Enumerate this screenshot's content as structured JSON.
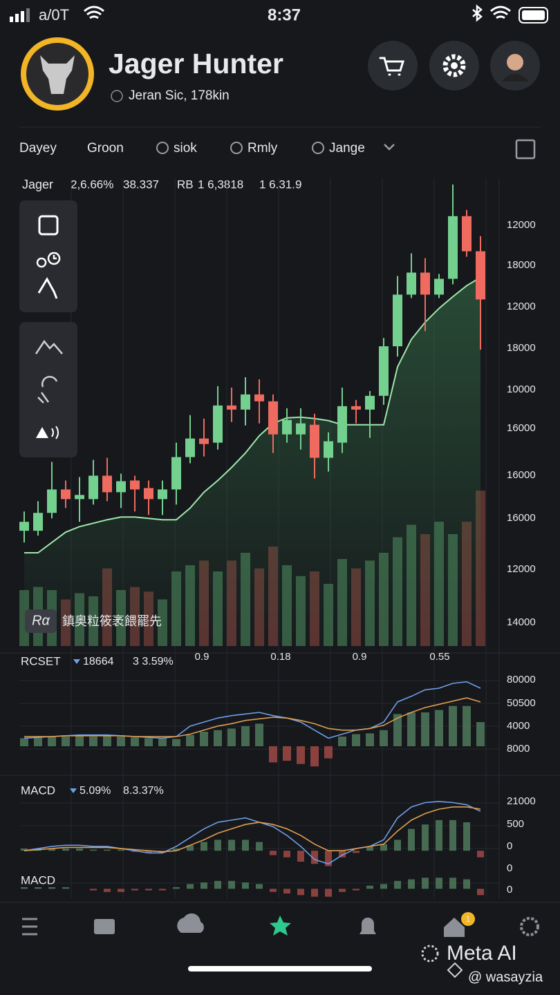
{
  "status_bar": {
    "carrier": "a/0T",
    "time": "8:37"
  },
  "header": {
    "title": "Jager Hunter",
    "subtitle": "Jeran Sic,  178kin"
  },
  "tabs": [
    "Dayey",
    "Groon",
    "siok",
    "Rmly",
    "Jange"
  ],
  "active_tab": 1,
  "legend": {
    "symbol": "Jager",
    "change": "2,6.66%",
    "price": "38.337",
    "ref_label": "RB",
    "ref_value": "1 6,3818",
    "ref_change": "1 6.31.9"
  },
  "price_axis_labels": [
    12000,
    18000,
    12000,
    18000,
    10000,
    16000,
    16000,
    16000,
    12000,
    14000
  ],
  "watermark": {
    "badge": "Rα",
    "text": "鎮奥粒筱袤餵罷先"
  },
  "time_axis_labels": [
    "0.9",
    "0.18",
    "0.9",
    "0.55"
  ],
  "chart_data": [
    {
      "type": "candlestick",
      "open": [
        8.4,
        8.4,
        13.6,
        20.4,
        17.6,
        17.6,
        24.4,
        19.6,
        23,
        20.8,
        17.6,
        20.4,
        29.8,
        35.2,
        34,
        44.8,
        43.6,
        48,
        46,
        36.4,
        36.4,
        39.2,
        29.6,
        34,
        44.6,
        43.6,
        47.6,
        62,
        77,
        83.4,
        77,
        81.6,
        99.8,
        89.6
      ],
      "high": [
        14,
        17,
        28.4,
        23,
        24,
        29,
        29.6,
        25,
        24.4,
        23,
        23,
        34,
        42,
        41,
        50.4,
        50,
        53,
        52.4,
        48,
        44,
        44,
        42.4,
        37,
        50,
        46.4,
        49,
        64.4,
        82.4,
        89,
        87.6,
        83,
        109,
        101.6,
        94
      ],
      "low": [
        5,
        7,
        12,
        15,
        11,
        16,
        17,
        15,
        14,
        13,
        13,
        16,
        28,
        30,
        32,
        40,
        39,
        39.6,
        31,
        34,
        32,
        23.6,
        25.6,
        31,
        39.6,
        35.4,
        45,
        59,
        76,
        66.4,
        76,
        80,
        88,
        61
      ],
      "close": [
        11,
        13.6,
        20.4,
        17.6,
        18.8,
        24.4,
        19.6,
        22.8,
        20.4,
        17.6,
        20.4,
        29.8,
        35.2,
        33.6,
        44.8,
        43.6,
        48,
        46,
        36.4,
        40.6,
        39.6,
        29.6,
        34.4,
        44.6,
        43.6,
        47.6,
        62,
        77,
        83.4,
        77,
        81.6,
        99.8,
        89.6,
        75.6
      ],
      "ma": [
        2,
        2,
        5,
        8,
        9.6,
        10.6,
        11.6,
        12.4,
        12.4,
        12,
        11.6,
        11.6,
        15,
        19.6,
        23,
        26.8,
        31,
        36,
        39.6,
        41.2,
        41.4,
        41,
        40.4,
        39.2,
        39.2,
        39.2,
        39.2,
        56,
        64,
        69,
        73,
        76.4,
        79.6,
        82
      ],
      "volume": [
        36,
        38,
        36,
        30,
        34,
        32,
        50,
        36,
        38,
        35,
        30,
        48,
        52,
        55,
        48,
        55,
        60,
        50,
        64,
        52,
        45,
        48,
        40,
        56,
        50,
        55,
        60,
        70,
        78,
        72,
        80,
        72,
        80,
        100
      ],
      "ylim": [
        0,
        110
      ],
      "volume_ylim": [
        0,
        100
      ],
      "up_color": "#74d08e",
      "down_color": "#ef6b5f",
      "ma_color": "#9ee8ac"
    },
    {
      "type": "indicator",
      "name": "RCSET",
      "value": "18664",
      "change": "3 3.59%",
      "histogram": [
        10,
        11,
        12,
        12,
        13,
        12,
        13,
        12,
        11,
        10,
        10,
        9,
        14,
        18,
        20,
        22,
        25,
        28,
        -20,
        -18,
        -22,
        -25,
        -15,
        12,
        15,
        16,
        20,
        40,
        42,
        42,
        45,
        50,
        50,
        30
      ],
      "series": [
        {
          "color": "#6f9fe8",
          "values": [
            10,
            11,
            12,
            13,
            14,
            14,
            14,
            13,
            12,
            11,
            10,
            12,
            25,
            30,
            35,
            38,
            40,
            42,
            38,
            35,
            30,
            20,
            10,
            15,
            20,
            22,
            30,
            55,
            62,
            70,
            72,
            78,
            80,
            72
          ]
        },
        {
          "color": "#e0a050",
          "values": [
            12,
            12,
            12,
            13,
            13,
            13,
            13,
            13,
            12,
            12,
            12,
            12,
            15,
            20,
            25,
            28,
            32,
            34,
            36,
            35,
            32,
            28,
            22,
            20,
            20,
            22,
            26,
            35,
            42,
            48,
            52,
            56,
            60,
            55
          ]
        }
      ],
      "ylim": [
        -30,
        90
      ],
      "axis_labels": [
        80000,
        50500,
        4000,
        8000
      ]
    },
    {
      "type": "indicator",
      "name": "MACD",
      "value": "5.09%",
      "change": "8.3.37%",
      "histogram": [
        2,
        2,
        2,
        2,
        2,
        1,
        1,
        1,
        -1,
        -2,
        -2,
        2,
        5,
        8,
        10,
        10,
        10,
        8,
        -4,
        -6,
        -10,
        -12,
        -14,
        -6,
        -2,
        4,
        6,
        10,
        20,
        24,
        28,
        28,
        26,
        -6
      ],
      "series": [
        {
          "color": "#6f9fe8",
          "values": [
            0,
            2,
            4,
            5,
            5,
            4,
            4,
            2,
            0,
            -2,
            -2,
            4,
            12,
            20,
            26,
            28,
            30,
            26,
            22,
            14,
            4,
            -8,
            -12,
            -4,
            2,
            4,
            10,
            30,
            40,
            44,
            45,
            44,
            42,
            36
          ]
        },
        {
          "color": "#e0a050",
          "values": [
            0,
            1,
            2,
            3,
            3,
            3,
            3,
            2,
            1,
            0,
            -1,
            0,
            5,
            10,
            16,
            20,
            24,
            26,
            24,
            20,
            14,
            6,
            0,
            0,
            2,
            4,
            6,
            18,
            28,
            34,
            38,
            40,
            40,
            38
          ]
        }
      ],
      "ylim": [
        -15,
        50
      ],
      "axis_labels": [
        21000,
        500,
        0,
        0
      ]
    },
    {
      "type": "indicator",
      "name": "MACD",
      "histogram": [
        1,
        1,
        1,
        1,
        0,
        -1,
        -2,
        -2,
        -1,
        -1,
        -1,
        1,
        3,
        4,
        5,
        5,
        4,
        3,
        -2,
        -3,
        -4,
        -5,
        -5,
        -2,
        -1,
        2,
        3,
        5,
        6,
        7,
        7,
        7,
        6,
        -4
      ],
      "ylim": [
        -6,
        8
      ],
      "axis_labels": [
        0
      ]
    }
  ],
  "bottom": {
    "badge": "1",
    "brand": "Meta AI",
    "handle": "@ wasayzia"
  }
}
